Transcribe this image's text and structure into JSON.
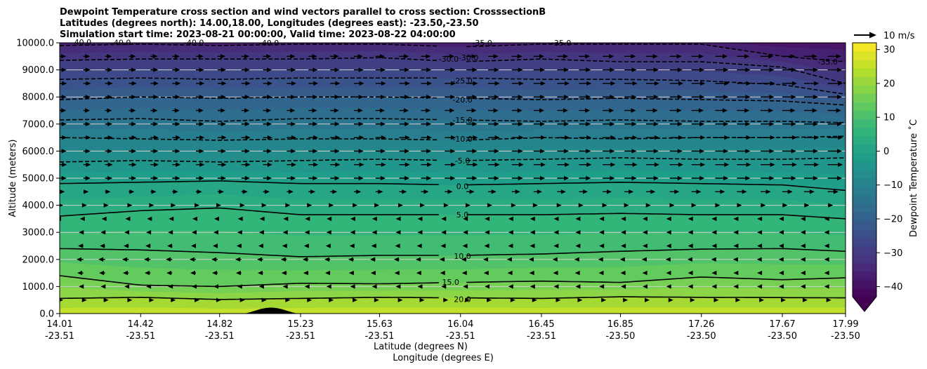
{
  "chart_data": {
    "type": "heatmap",
    "subtype": "filled-contour cross section with line contours and wind vectors",
    "title_lines": [
      "Dewpoint Temperature cross section and wind vectors parallel to cross section: CrosssectionB",
      "Latitudes (degrees north): 14.00,18.00, Longitudes (degrees east): -23.50,-23.50",
      "Simulation start time: 2023-08-21 00:00:00, Valid time: 2023-08-22 04:00:00"
    ],
    "xlabel_lat": "Latitude (degrees N)",
    "xlabel_lon": "Longitude (degrees E)",
    "ylabel": "Altitude (meters)",
    "colorbar_label": "Dewpoint Temperature $^\\circ$C",
    "colorbar_label_display": "Dewpoint Temperature ˚C",
    "colorbar_ticks": [
      "30",
      "20",
      "10",
      "0",
      "−10",
      "−20",
      "−30",
      "−40"
    ],
    "colorbar_tick_values": [
      30,
      20,
      10,
      0,
      -10,
      -20,
      -30,
      -40
    ],
    "colorbar_range": [
      -43,
      32
    ],
    "colorbar_extend": "min",
    "quiver_key": "10 m/s",
    "x_tick_lat": [
      "14.01",
      "14.42",
      "14.82",
      "15.23",
      "15.63",
      "16.04",
      "16.45",
      "16.85",
      "17.26",
      "17.67",
      "17.99"
    ],
    "x_tick_lon": [
      "-23.51",
      "-23.51",
      "-23.51",
      "-23.51",
      "-23.51",
      "-23.51",
      "-23.51",
      "-23.50",
      "-23.50",
      "-23.50",
      "-23.50"
    ],
    "x_tick_values": [
      14.01,
      14.42,
      14.82,
      15.23,
      15.63,
      16.04,
      16.45,
      16.85,
      17.26,
      17.67,
      17.99
    ],
    "y_ticks": [
      "0.0",
      "1000.0",
      "2000.0",
      "3000.0",
      "4000.0",
      "5000.0",
      "6000.0",
      "7000.0",
      "8000.0",
      "9000.0",
      "10000.0"
    ],
    "y_tick_values": [
      0,
      1000,
      2000,
      3000,
      4000,
      5000,
      6000,
      7000,
      8000,
      9000,
      10000
    ],
    "xlim": [
      14.01,
      17.99
    ],
    "ylim": [
      0,
      10000
    ],
    "grid": "horizontal",
    "surface_hill": {
      "center_lat": 15.08,
      "half_width_deg": 0.14,
      "peak_altitude": 220
    },
    "contour_lines": [
      {
        "value": 20,
        "label": "20.0",
        "style": "solid",
        "alts": [
          560,
          600,
          520,
          560,
          600,
          580,
          560,
          620,
          600,
          590,
          580
        ]
      },
      {
        "value": 15,
        "label": "15.0",
        "style": "solid",
        "alts": [
          1400,
          1050,
          1000,
          1120,
          1100,
          1150,
          1200,
          1150,
          1350,
          1250,
          1320
        ]
      },
      {
        "value": 10,
        "label": "10.0",
        "style": "solid",
        "alts": [
          2400,
          2350,
          2250,
          2100,
          2150,
          2150,
          2200,
          2300,
          2380,
          2400,
          2300
        ]
      },
      {
        "value": 5,
        "label": "5.0",
        "style": "solid",
        "alts": [
          3600,
          3800,
          3900,
          3650,
          3650,
          3650,
          3650,
          3700,
          3650,
          3650,
          3500
        ]
      },
      {
        "value": 0,
        "label": "0.0",
        "style": "solid",
        "alts": [
          4800,
          4850,
          4900,
          4800,
          4800,
          4750,
          4800,
          4850,
          4800,
          4750,
          4550
        ]
      },
      {
        "value": -5,
        "label": "-5.0",
        "style": "dashed",
        "alts": [
          5600,
          5650,
          5600,
          5650,
          5700,
          5650,
          5700,
          5750,
          5700,
          5700,
          5750
        ]
      },
      {
        "value": -10,
        "label": "-10.0",
        "style": "dashed",
        "alts": [
          6500,
          6450,
          6400,
          6450,
          6450,
          6400,
          6500,
          6450,
          6500,
          6500,
          6550
        ]
      },
      {
        "value": -15,
        "label": "-15.0",
        "style": "dashed",
        "alts": [
          7150,
          7200,
          7100,
          7200,
          7200,
          7150,
          7100,
          7150,
          7100,
          7100,
          7050
        ]
      },
      {
        "value": -20,
        "label": "-20.0",
        "style": "dashed",
        "alts": [
          7900,
          8000,
          7950,
          8000,
          8000,
          7950,
          7900,
          7950,
          7900,
          7850,
          7700
        ]
      },
      {
        "value": -25,
        "label": "-25.0",
        "style": "dashed",
        "alts": [
          8650,
          8700,
          8650,
          8700,
          8700,
          8700,
          8650,
          8650,
          8600,
          8450,
          8100
        ]
      },
      {
        "value": -30,
        "label": "-30.0",
        "style": "dashed",
        "alts": [
          9350,
          9400,
          9400,
          9400,
          9450,
          9300,
          9400,
          9300,
          9300,
          9100,
          8500
        ]
      },
      {
        "value": -35,
        "label": "-35.0",
        "style": "dashed",
        "alts": [
          9900,
          9950,
          9900,
          9950,
          9950,
          9850,
          9950,
          9950,
          9950,
          9500,
          9300
        ]
      },
      {
        "value": -40,
        "label": "-40.0",
        "style": "dashed",
        "alts": [
          10100,
          10050,
          10100,
          10100,
          10150,
          10200,
          10200,
          10200,
          10200,
          10200,
          10200
        ]
      }
    ],
    "contour_label_positions": [
      {
        "value": 20,
        "lat": 16.05,
        "alt": 530
      },
      {
        "value": 15,
        "lat": 15.99,
        "alt": 1170
      },
      {
        "value": 10,
        "lat": 16.05,
        "alt": 2120
      },
      {
        "value": 5,
        "lat": 16.05,
        "alt": 3650
      },
      {
        "value": 0,
        "lat": 16.05,
        "alt": 4700
      },
      {
        "value": -5,
        "lat": 16.05,
        "alt": 5650
      },
      {
        "value": -10,
        "lat": 16.05,
        "alt": 6450
      },
      {
        "value": -15,
        "lat": 16.05,
        "alt": 7150
      },
      {
        "value": -20,
        "lat": 16.05,
        "alt": 7900
      },
      {
        "value": -25,
        "lat": 16.05,
        "alt": 8600
      },
      {
        "value": -30,
        "lat": 15.98,
        "alt": 9400
      },
      {
        "value": -30,
        "lat": 16.08,
        "alt": 9450
      },
      {
        "value": -35,
        "lat": 16.15,
        "alt": 10000
      },
      {
        "value": -35,
        "lat": 16.55,
        "alt": 10000
      },
      {
        "value": -35,
        "lat": 17.9,
        "alt": 9300
      },
      {
        "value": -40,
        "lat": 14.12,
        "alt": 10020
      },
      {
        "value": -40,
        "lat": 14.32,
        "alt": 10010
      },
      {
        "value": -40,
        "lat": 14.69,
        "alt": 10010
      },
      {
        "value": -40,
        "lat": 15.07,
        "alt": 10005
      }
    ],
    "wind_vector_altitudes": [
      500,
      1000,
      1500,
      2000,
      2500,
      3000,
      3500,
      4000,
      4500,
      5000,
      5500,
      6000,
      6500,
      7000,
      7500,
      8000,
      8500,
      9000,
      9500
    ],
    "wind_vector_lats": [
      14.01,
      14.13,
      14.24,
      14.36,
      14.47,
      14.58,
      14.7,
      14.81,
      14.93,
      15.04,
      15.16,
      15.27,
      15.38,
      15.5,
      15.61,
      15.73,
      15.84,
      15.96,
      16.07,
      16.18,
      16.3,
      16.41,
      16.53,
      16.64,
      16.76,
      16.87,
      16.98,
      17.1,
      17.21,
      17.33,
      17.44,
      17.56,
      17.67,
      17.78,
      17.9
    ],
    "wind_speed_by_altitude_ms": [
      1.5,
      -3,
      -4,
      -4.5,
      -3.5,
      -3,
      -1,
      3,
      6,
      8,
      8.5,
      8,
      8.5,
      8,
      7.5,
      8,
      8.5,
      8,
      7.5
    ],
    "wind_speed_north_increase_factor": 0.6
  }
}
